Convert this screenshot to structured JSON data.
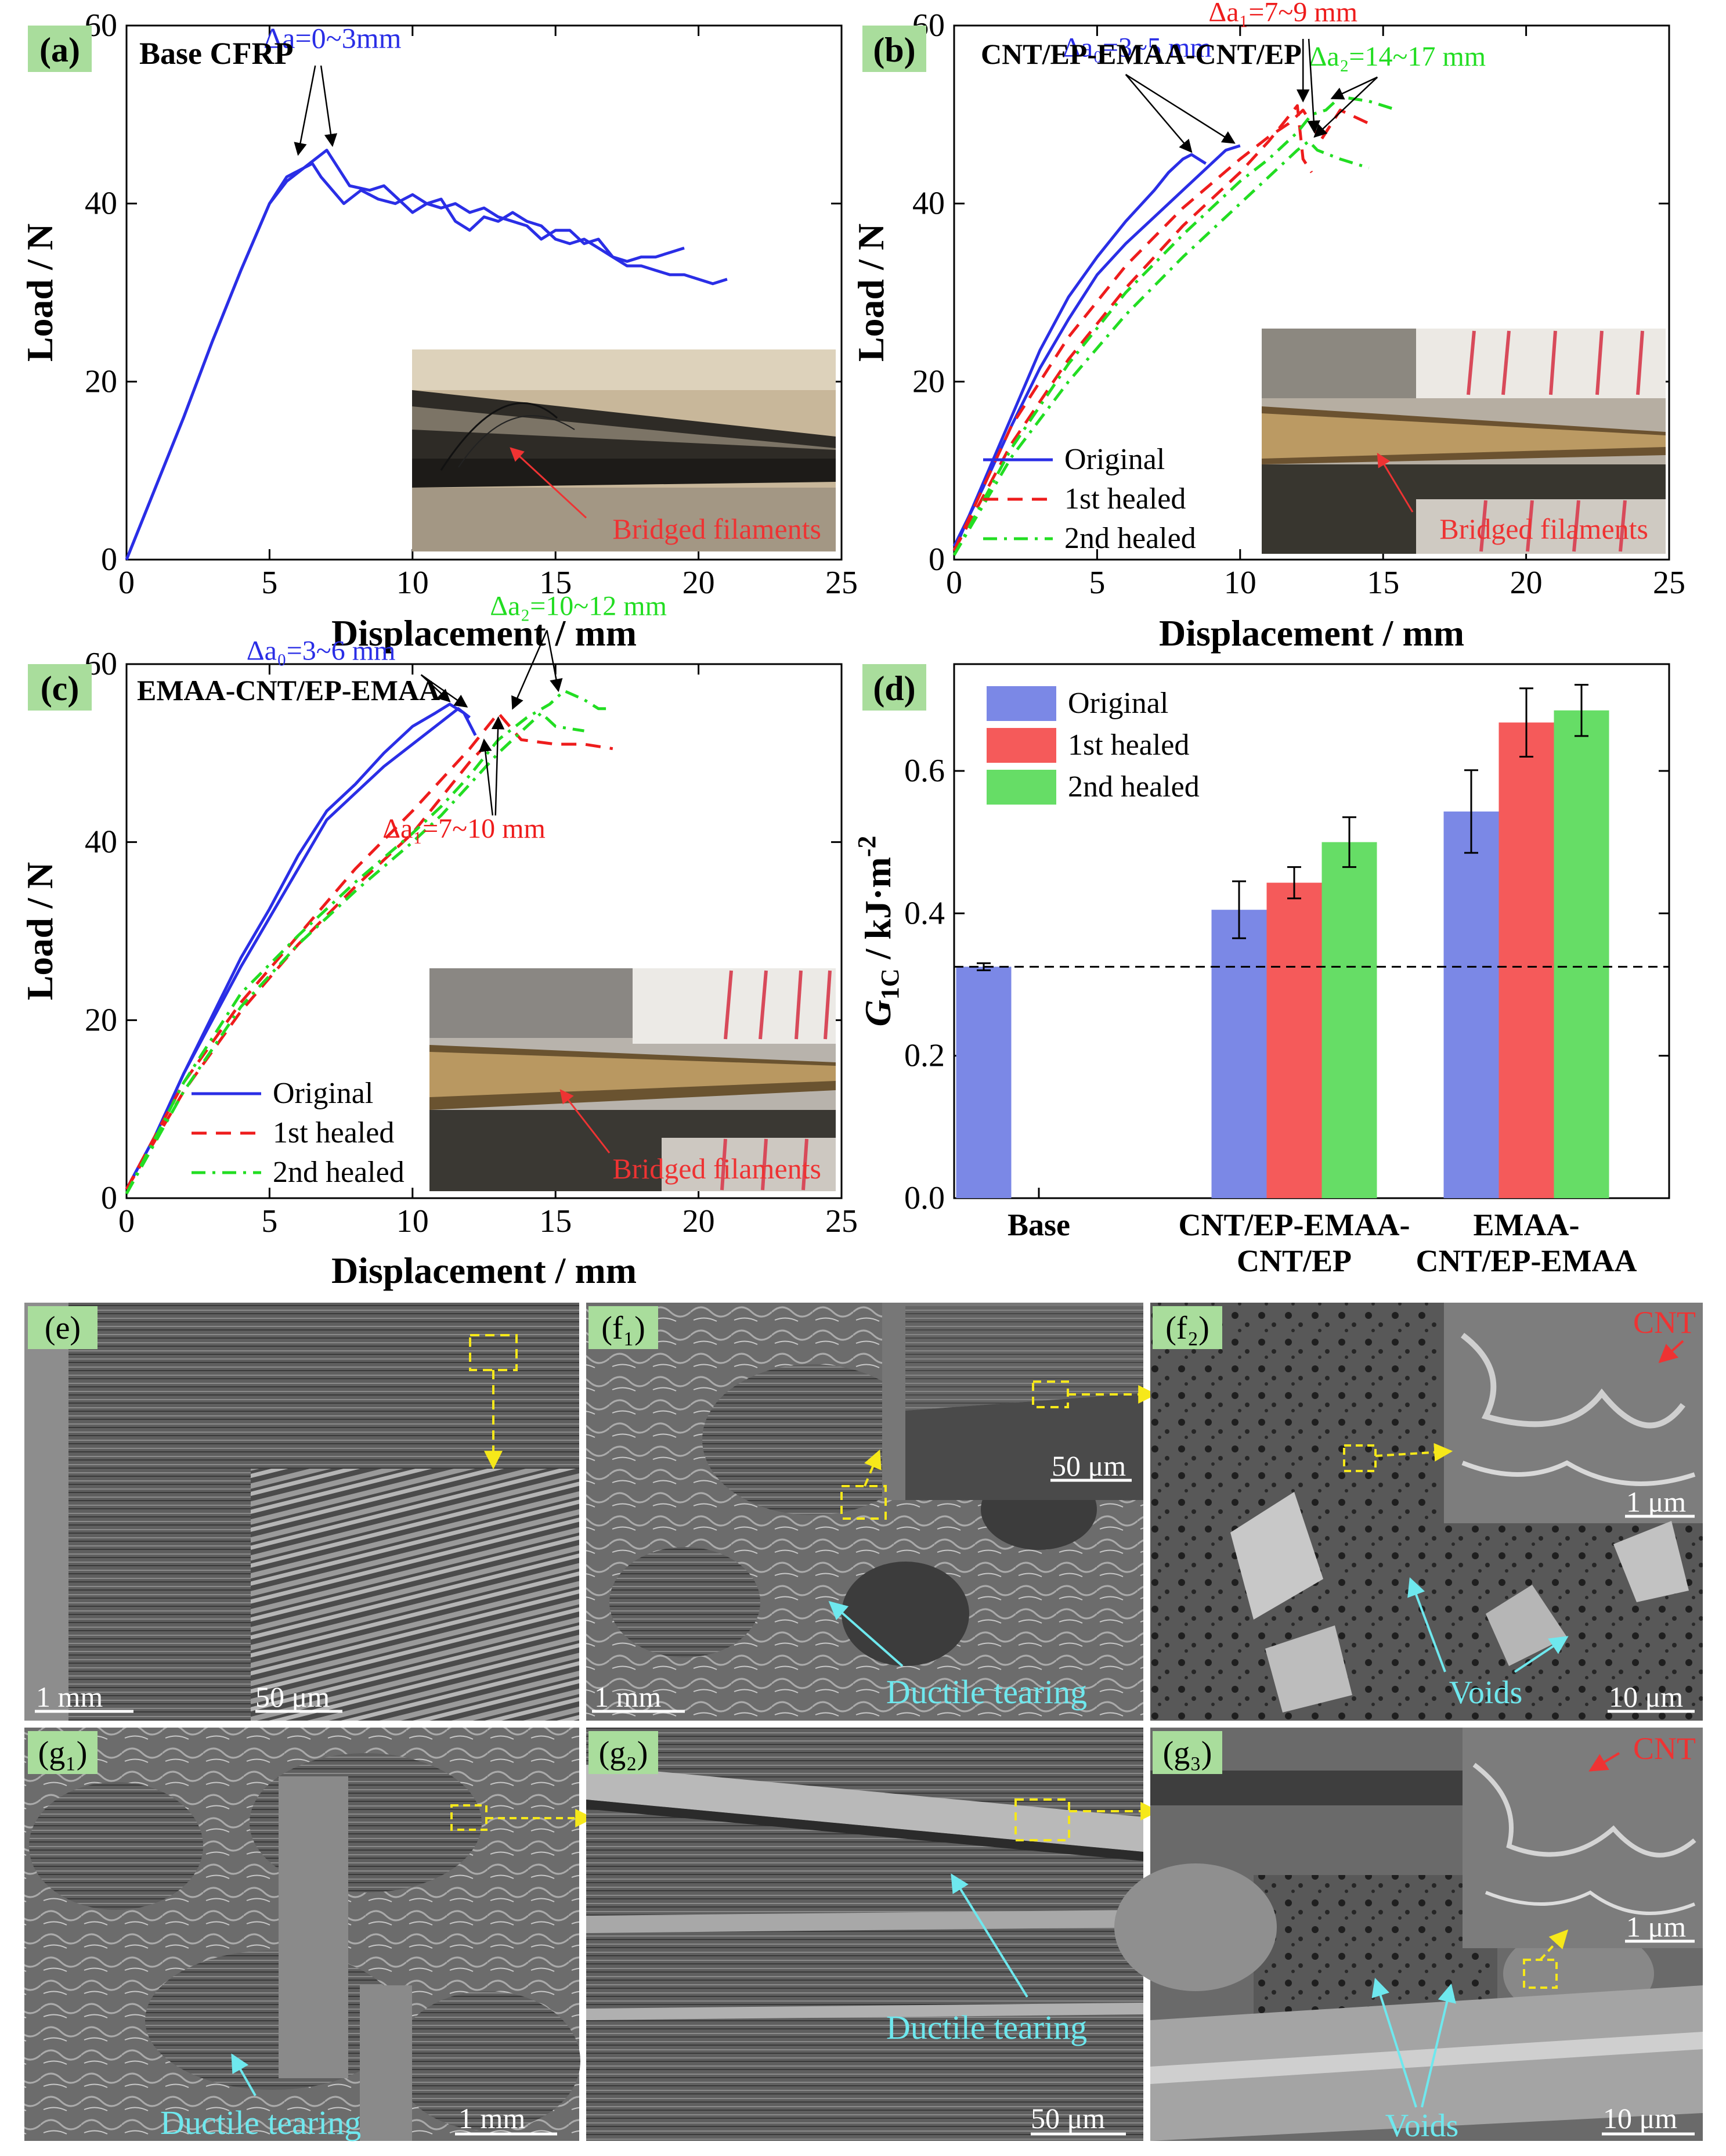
{
  "colors": {
    "original": "#2a2ee6",
    "healed1": "#ee1c1c",
    "healed2": "#22dd22",
    "bar_original": "#7b88e6",
    "bar_healed1": "#f55a5a",
    "bar_healed2": "#66dd66",
    "panel_label_bg": "#a9dd9c",
    "annot_cyan": "#6ee8ee",
    "annot_yellow": "#f6e81a"
  },
  "chart_data": [
    {
      "type": "line",
      "panel": "(a)",
      "title": "Base CFRP",
      "xlabel": "Displacement / mm",
      "ylabel": "Load / N",
      "xlim": [
        0,
        25
      ],
      "ylim": [
        0,
        60
      ],
      "xticks": [
        "0",
        "5",
        "10",
        "15",
        "20",
        "25"
      ],
      "yticks": [
        "0",
        "20",
        "40",
        "60"
      ],
      "series": [
        {
          "name": "",
          "color": "original",
          "dash": "solid",
          "x": [
            0,
            1,
            2,
            3,
            4,
            5,
            5.6,
            6.2,
            6.5,
            6.8,
            7.2,
            7.6,
            8.2,
            8.8,
            9.4,
            10,
            10.5,
            11,
            11.5,
            12,
            12.5,
            13,
            13.5,
            14,
            14.5,
            15,
            15.5,
            16,
            16.5,
            17,
            17.5,
            18,
            18.5,
            19,
            19.5
          ],
          "y": [
            0,
            8,
            16,
            24.5,
            32.5,
            40,
            43,
            44,
            44.5,
            43,
            41.5,
            40,
            41.5,
            40.5,
            40,
            41,
            40,
            40.5,
            38,
            37,
            38.5,
            38,
            39,
            38,
            37.5,
            36,
            35.5,
            36,
            35,
            34,
            33.5,
            34,
            34,
            34.5,
            35
          ]
        },
        {
          "name": "",
          "color": "original",
          "dash": "solid",
          "x": [
            0,
            1,
            2,
            3,
            4,
            5,
            5.6,
            6,
            6.6,
            7,
            7.4,
            7.8,
            8.5,
            9,
            9.5,
            10,
            10.5,
            11,
            11.5,
            12,
            12.5,
            13,
            13.5,
            14,
            14.5,
            15,
            15.5,
            16,
            16.5,
            17,
            17.5,
            18,
            18.5,
            19,
            19.5,
            20,
            20.5,
            21
          ],
          "y": [
            0,
            8,
            16,
            24.5,
            32.5,
            40,
            42.5,
            43.5,
            45,
            46,
            44,
            42,
            41.5,
            42,
            40.5,
            39,
            40,
            39.5,
            40,
            39,
            39.5,
            38.5,
            38,
            37.5,
            36,
            37,
            37,
            35.5,
            36,
            34,
            33,
            33,
            32.5,
            32,
            32,
            31.5,
            31,
            31.5
          ]
        }
      ],
      "annotations": [
        {
          "text": "Δa=0~3mm",
          "color": "original",
          "x": 7.2,
          "y": 57.5
        }
      ],
      "inset_caption": "Bridged filaments"
    },
    {
      "type": "line",
      "panel": "(b)",
      "title": "CNT/EP-EMAA-CNT/EP",
      "xlabel": "Displacement / mm",
      "ylabel": "Load / N",
      "xlim": [
        0,
        25
      ],
      "ylim": [
        0,
        60
      ],
      "xticks": [
        "0",
        "5",
        "10",
        "15",
        "20",
        "25"
      ],
      "yticks": [
        "0",
        "20",
        "40",
        "60"
      ],
      "legend": {
        "position": "bottom-left",
        "entries": [
          "Original",
          "1st healed",
          "2nd healed"
        ]
      },
      "series": [
        {
          "name": "Original",
          "color": "original",
          "dash": "solid",
          "x": [
            0,
            1,
            2,
            3,
            4,
            5,
            6,
            7,
            7.5,
            8,
            8.3,
            8.8
          ],
          "y": [
            1,
            8.5,
            16,
            23.5,
            29.5,
            34,
            38,
            41.5,
            43.5,
            45,
            45.5,
            44.5
          ]
        },
        {
          "name": "Original",
          "color": "original",
          "dash": "solid",
          "x": [
            0,
            1,
            2,
            3,
            4,
            5,
            6,
            7,
            8,
            9,
            9.5,
            10
          ],
          "y": [
            1.5,
            8,
            15,
            21.5,
            27,
            32,
            35.5,
            38.5,
            41.5,
            44.5,
            46,
            46.5
          ]
        },
        {
          "name": "1st healed",
          "color": "healed1",
          "dash": "dash",
          "x": [
            0,
            2,
            4,
            6,
            8,
            10,
            11,
            11.7,
            12.2,
            12.5,
            12.8,
            13.5,
            14.5
          ],
          "y": [
            1,
            15,
            25,
            33,
            39.5,
            45,
            47.5,
            49,
            50.5,
            49,
            47,
            50.5,
            49
          ]
        },
        {
          "name": "1st healed",
          "color": "healed1",
          "dash": "dash",
          "x": [
            0,
            2,
            4,
            6,
            8,
            10,
            11,
            12,
            12.2,
            12.5
          ],
          "y": [
            1,
            13,
            22.5,
            30.5,
            37.5,
            43.5,
            47,
            51,
            45,
            43.5
          ]
        },
        {
          "name": "2nd healed",
          "color": "healed2",
          "dash": "dashdot",
          "x": [
            0,
            2,
            4,
            6,
            8,
            10,
            11,
            12,
            12.5,
            13,
            13.5,
            14.5,
            15.5
          ],
          "y": [
            0.5,
            12.5,
            22,
            30,
            36.5,
            42.5,
            45,
            48,
            50,
            50.5,
            52,
            51.5,
            50.5
          ]
        },
        {
          "name": "2nd healed",
          "color": "healed2",
          "dash": "dashdot",
          "x": [
            0,
            2,
            4,
            6,
            8,
            10,
            11,
            12,
            12.4,
            12.7,
            13.5,
            14.5
          ],
          "y": [
            0.5,
            11.5,
            20,
            27.5,
            34,
            40,
            43,
            46,
            47,
            46,
            45,
            44
          ]
        }
      ],
      "annotations": [
        {
          "text": "Δa₀=3~5 mm",
          "color": "original",
          "x": 6.4,
          "y": 56.5
        },
        {
          "text": "Δa₁=7~9 mm",
          "color": "healed1",
          "x": 11.5,
          "y": 60.5
        },
        {
          "text": "Δa₂=14~17 mm",
          "color": "healed2",
          "x": 15.5,
          "y": 55.5
        }
      ],
      "inset_caption": "Bridged filaments"
    },
    {
      "type": "line",
      "panel": "(c)",
      "title": "EMAA-CNT/EP-EMAA",
      "xlabel": "Displacement / mm",
      "ylabel": "Load / N",
      "xlim": [
        0,
        25
      ],
      "ylim": [
        0,
        60
      ],
      "xticks": [
        "0",
        "5",
        "10",
        "15",
        "20",
        "25"
      ],
      "yticks": [
        "0",
        "20",
        "40",
        "60"
      ],
      "legend": {
        "position": "bottom-left",
        "entries": [
          "Original",
          "1st healed",
          "2nd healed"
        ]
      },
      "series": [
        {
          "name": "Original",
          "color": "original",
          "dash": "solid",
          "x": [
            0,
            1,
            2,
            3,
            4,
            5,
            6,
            7,
            8,
            9,
            10,
            10.8,
            11.3,
            11.8,
            12.2
          ],
          "y": [
            1,
            7,
            14,
            20.5,
            27,
            32.5,
            38.5,
            43.5,
            46.5,
            50,
            53,
            54.5,
            55.5,
            54.5,
            52
          ]
        },
        {
          "name": "Original",
          "color": "original",
          "dash": "solid",
          "x": [
            0,
            1,
            2,
            3,
            4,
            5,
            6,
            7,
            8,
            9,
            10,
            11,
            11.6,
            12
          ],
          "y": [
            1,
            7,
            14,
            20,
            26,
            31.5,
            37,
            42.5,
            45.5,
            48.5,
            51,
            53.5,
            55,
            54
          ]
        },
        {
          "name": "1st healed",
          "color": "healed1",
          "dash": "dash",
          "x": [
            0,
            2,
            4,
            6,
            8,
            10,
            11,
            12,
            12.5,
            13,
            13.8,
            15,
            16,
            17
          ],
          "y": [
            1,
            13,
            22,
            29.5,
            37,
            43.5,
            47,
            50.5,
            52.5,
            54.5,
            51.5,
            51,
            51,
            50.5
          ]
        },
        {
          "name": "1st healed",
          "color": "healed1",
          "dash": "dash",
          "x": [
            0,
            2,
            4,
            6,
            8,
            10,
            11,
            12,
            12.6
          ],
          "y": [
            1,
            12,
            21,
            28.5,
            35,
            41,
            45,
            49,
            51
          ]
        },
        {
          "name": "2nd healed",
          "color": "healed2",
          "dash": "dashdot",
          "x": [
            0,
            2,
            4,
            6,
            8,
            10,
            11,
            12,
            13,
            14,
            14.8,
            15.3,
            16,
            16.5,
            17
          ],
          "y": [
            0.5,
            13,
            23,
            29.5,
            35.5,
            41,
            44,
            47.5,
            51.5,
            54,
            55.5,
            57,
            56,
            55,
            55
          ]
        },
        {
          "name": "2nd healed",
          "color": "healed2",
          "dash": "dashdot",
          "x": [
            0,
            2,
            4,
            6,
            8,
            10,
            11,
            12,
            13,
            14,
            14.5,
            15,
            16
          ],
          "y": [
            0.5,
            12,
            21.5,
            28.5,
            34.5,
            40,
            43,
            46.5,
            50,
            53,
            54.5,
            53,
            52.5
          ]
        }
      ],
      "annotations": [
        {
          "text": "Δa₀=3~6 mm",
          "color": "original",
          "x": 6.8,
          "y": 60.5
        },
        {
          "text": "Δa₂=10~12 mm",
          "color": "healed2",
          "x": 15.8,
          "y": 65.5
        },
        {
          "text": "Δa₁=7~10 mm",
          "color": "healed1",
          "x": 11.8,
          "y": 40.5
        }
      ],
      "inset_caption": "Bridged filaments"
    },
    {
      "type": "bar",
      "panel": "(d)",
      "ylabel": "G1C / kJ·m-2",
      "ylim": [
        0,
        0.75
      ],
      "yticks": [
        "0.0",
        "0.2",
        "0.4",
        "0.6"
      ],
      "categories": [
        "Base",
        "CNT/EP-EMAA-CNT/EP",
        "EMAA-CNT/EP-EMAA"
      ],
      "category_lines": [
        [
          "Base"
        ],
        [
          "CNT/EP-EMAA-",
          "CNT/EP"
        ],
        [
          "EMAA-",
          "CNT/EP-EMAA"
        ]
      ],
      "legend": {
        "position": "top-left",
        "entries": [
          "Original",
          "1st healed",
          "2nd healed"
        ]
      },
      "series": [
        {
          "name": "Original",
          "color": "bar_original",
          "values": [
            0.325,
            0.405,
            0.543
          ],
          "errors": [
            0.005,
            0.04,
            0.058
          ]
        },
        {
          "name": "1st healed",
          "color": "bar_healed1",
          "values": [
            null,
            0.443,
            0.668
          ],
          "errors": [
            null,
            0.022,
            0.048
          ]
        },
        {
          "name": "2nd healed",
          "color": "bar_healed2",
          "values": [
            null,
            0.5,
            0.685
          ],
          "errors": [
            null,
            0.035,
            0.036
          ]
        }
      ],
      "reference_line": {
        "y": 0.325,
        "style": "dashed"
      }
    }
  ],
  "sem_panels": [
    {
      "label": "(e)",
      "scale": "1 mm",
      "inset_scale": "50 μm",
      "annotations": []
    },
    {
      "label": "(f₁)",
      "scale": "1 mm",
      "inset_scale": "50 μm",
      "annotations": [
        "Ductile tearing"
      ]
    },
    {
      "label": "(f₂)",
      "scale": "10 μm",
      "inset_scale": "1 μm",
      "annotations": [
        "Voids",
        "CNT"
      ]
    },
    {
      "label": "(g₁)",
      "scale": "1 mm",
      "annotations": [
        "Ductile tearing"
      ]
    },
    {
      "label": "(g₂)",
      "scale": "50 μm",
      "annotations": [
        "Ductile tearing"
      ]
    },
    {
      "label": "(g₃)",
      "scale": "10 μm",
      "inset_scale": "1 μm",
      "annotations": [
        "Voids",
        "CNT"
      ]
    }
  ]
}
